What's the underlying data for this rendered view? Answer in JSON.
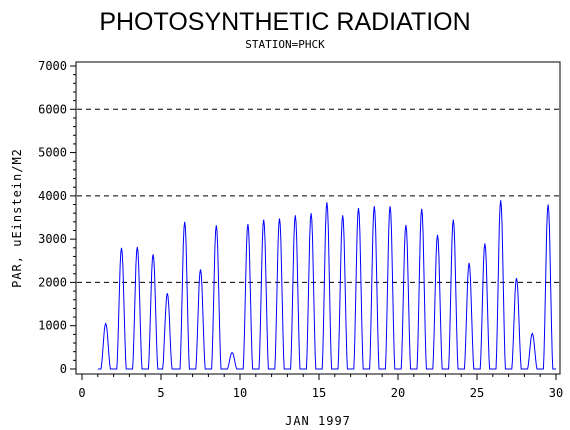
{
  "chart_data": {
    "type": "line",
    "title": "PHOTOSYNTHETIC RADIATION",
    "subtitle": "STATION=PHCK",
    "xlabel": "JAN 1997",
    "ylabel": "PAR, uEinstein/M2",
    "xlim": [
      0,
      30
    ],
    "ylim": [
      0,
      7000
    ],
    "x_ticks": [
      0,
      5,
      10,
      15,
      20,
      25,
      30
    ],
    "y_ticks": [
      0,
      1000,
      2000,
      3000,
      4000,
      5000,
      6000,
      7000
    ],
    "reference_lines": [
      2000,
      4000,
      6000
    ],
    "line_color": "#0000ff",
    "series": [
      {
        "daily_peaks": [
          {
            "x": 1.5,
            "y": 1050
          },
          {
            "x": 2.5,
            "y": 2800
          },
          {
            "x": 3.5,
            "y": 2820
          },
          {
            "x": 4.5,
            "y": 2650
          },
          {
            "x": 5.4,
            "y": 1750
          },
          {
            "x": 6.5,
            "y": 3400
          },
          {
            "x": 7.5,
            "y": 2300
          },
          {
            "x": 8.5,
            "y": 3320
          },
          {
            "x": 9.5,
            "y": 380
          },
          {
            "x": 10.5,
            "y": 3350
          },
          {
            "x": 11.5,
            "y": 3450
          },
          {
            "x": 12.5,
            "y": 3480
          },
          {
            "x": 13.5,
            "y": 3550
          },
          {
            "x": 14.5,
            "y": 3600
          },
          {
            "x": 15.5,
            "y": 3850
          },
          {
            "x": 16.5,
            "y": 3550
          },
          {
            "x": 17.5,
            "y": 3720
          },
          {
            "x": 18.5,
            "y": 3760
          },
          {
            "x": 19.5,
            "y": 3760
          },
          {
            "x": 20.5,
            "y": 3330
          },
          {
            "x": 21.5,
            "y": 3700
          },
          {
            "x": 22.5,
            "y": 3100
          },
          {
            "x": 23.5,
            "y": 3450
          },
          {
            "x": 24.5,
            "y": 2450
          },
          {
            "x": 25.5,
            "y": 2900
          },
          {
            "x": 26.5,
            "y": 3900
          },
          {
            "x": 27.5,
            "y": 2100
          },
          {
            "x": 28.5,
            "y": 820
          },
          {
            "x": 29.5,
            "y": 3800
          }
        ]
      }
    ]
  }
}
